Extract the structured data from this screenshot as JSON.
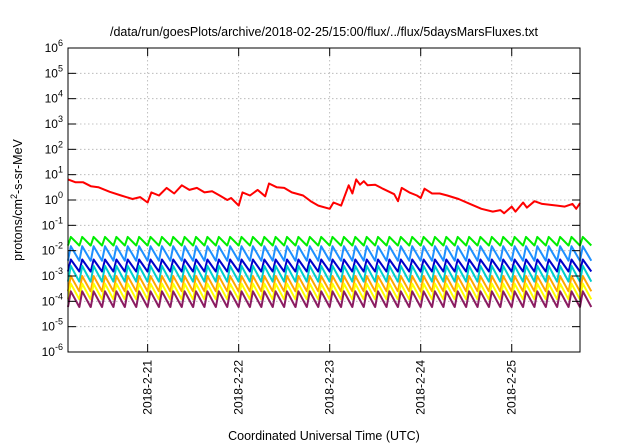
{
  "chart_data": {
    "type": "line",
    "title": "/data/run/goesPlots/archive/2018-02-25/15:00/flux/../flux/5daysMarsFluxes.txt",
    "xlabel": "Coordinated Universal Time (UTC)",
    "ylabel": "protons/cm²-s-sr-MeV",
    "y_scale": "log",
    "ylim": [
      1e-06,
      1000000.0
    ],
    "xlim": [
      "2018-02-20T03:00",
      "2018-02-25T18:00"
    ],
    "grid": true,
    "x_tick_labels": [
      "2018-2-21",
      "2018-2-22",
      "2018-2-23",
      "2018-2-24",
      "2018-2-25"
    ],
    "x_ticks": [
      "2018-02-21T00:00",
      "2018-02-22T00:00",
      "2018-02-23T00:00",
      "2018-02-24T00:00",
      "2018-02-25T00:00"
    ],
    "y_ticks": [
      1e-06,
      1e-05,
      0.0001,
      0.001,
      0.01,
      0.1,
      1.0,
      10.0,
      100.0,
      1000.0,
      10000.0,
      100000.0,
      1000000.0
    ],
    "y_tick_labels": [
      {
        "base": "10",
        "exp": "-6"
      },
      {
        "base": "10",
        "exp": "-5"
      },
      {
        "base": "10",
        "exp": "-4"
      },
      {
        "base": "10",
        "exp": "-3"
      },
      {
        "base": "10",
        "exp": "-2"
      },
      {
        "base": "10",
        "exp": "-1"
      },
      {
        "base": "10",
        "exp": "0"
      },
      {
        "base": "10",
        "exp": "1"
      },
      {
        "base": "10",
        "exp": "2"
      },
      {
        "base": "10",
        "exp": "3"
      },
      {
        "base": "10",
        "exp": "4"
      },
      {
        "base": "10",
        "exp": "5"
      },
      {
        "base": "10",
        "exp": "6"
      }
    ],
    "series": [
      {
        "color": "#ff0000",
        "points": [
          [
            "2018-02-20T03:00",
            6.5
          ],
          [
            "2018-02-20T05:00",
            5.0
          ],
          [
            "2018-02-20T07:00",
            5.0
          ],
          [
            "2018-02-20T09:00",
            3.5
          ],
          [
            "2018-02-20T11:00",
            3.2
          ],
          [
            "2018-02-20T14:00",
            2.1
          ],
          [
            "2018-02-20T17:00",
            1.5
          ],
          [
            "2018-02-20T20:00",
            1.1
          ],
          [
            "2018-02-20T22:00",
            1.3
          ],
          [
            "2018-02-21T00:00",
            0.8
          ],
          [
            "2018-02-21T01:00",
            2.0
          ],
          [
            "2018-02-21T03:00",
            1.5
          ],
          [
            "2018-02-21T05:00",
            3.0
          ],
          [
            "2018-02-21T07:00",
            1.8
          ],
          [
            "2018-02-21T09:00",
            3.8
          ],
          [
            "2018-02-21T11:00",
            2.5
          ],
          [
            "2018-02-21T13:00",
            3.0
          ],
          [
            "2018-02-21T15:00",
            2.0
          ],
          [
            "2018-02-21T17:00",
            2.2
          ],
          [
            "2018-02-21T19:00",
            1.5
          ],
          [
            "2018-02-21T21:00",
            1.0
          ],
          [
            "2018-02-21T22:00",
            1.2
          ],
          [
            "2018-02-22T00:00",
            0.6
          ],
          [
            "2018-02-22T01:00",
            2.0
          ],
          [
            "2018-02-22T03:00",
            1.5
          ],
          [
            "2018-02-22T05:00",
            2.5
          ],
          [
            "2018-02-22T07:00",
            1.4
          ],
          [
            "2018-02-22T08:00",
            4.5
          ],
          [
            "2018-02-22T10:00",
            3.2
          ],
          [
            "2018-02-22T12:00",
            3.0
          ],
          [
            "2018-02-22T14:00",
            2.0
          ],
          [
            "2018-02-22T17:00",
            1.5
          ],
          [
            "2018-02-22T19:00",
            0.9
          ],
          [
            "2018-02-22T21:00",
            0.6
          ],
          [
            "2018-02-23T00:00",
            0.45
          ],
          [
            "2018-02-23T01:00",
            0.8
          ],
          [
            "2018-02-23T03:00",
            0.6
          ],
          [
            "2018-02-23T05:00",
            3.8
          ],
          [
            "2018-02-23T06:00",
            1.8
          ],
          [
            "2018-02-23T07:00",
            6.5
          ],
          [
            "2018-02-23T08:00",
            4.0
          ],
          [
            "2018-02-23T09:00",
            5.5
          ],
          [
            "2018-02-23T10:00",
            3.8
          ],
          [
            "2018-02-23T12:00",
            4.0
          ],
          [
            "2018-02-23T14:00",
            2.8
          ],
          [
            "2018-02-23T17:00",
            1.7
          ],
          [
            "2018-02-23T18:00",
            0.9
          ],
          [
            "2018-02-23T19:00",
            3.0
          ],
          [
            "2018-02-23T21:00",
            2.0
          ],
          [
            "2018-02-23T23:00",
            1.5
          ],
          [
            "2018-02-24T00:00",
            1.2
          ],
          [
            "2018-02-24T01:00",
            2.8
          ],
          [
            "2018-02-24T03:00",
            1.8
          ],
          [
            "2018-02-24T05:00",
            1.8
          ],
          [
            "2018-02-24T07:00",
            1.5
          ],
          [
            "2018-02-24T10:00",
            1.1
          ],
          [
            "2018-02-24T13:00",
            0.7
          ],
          [
            "2018-02-24T16:00",
            0.45
          ],
          [
            "2018-02-24T19:00",
            0.35
          ],
          [
            "2018-02-24T21:00",
            0.4
          ],
          [
            "2018-02-24T22:00",
            0.3
          ],
          [
            "2018-02-25T00:00",
            0.55
          ],
          [
            "2018-02-25T01:00",
            0.35
          ],
          [
            "2018-02-25T03:00",
            0.8
          ],
          [
            "2018-02-25T04:00",
            0.5
          ],
          [
            "2018-02-25T06:00",
            0.9
          ],
          [
            "2018-02-25T08:00",
            0.7
          ],
          [
            "2018-02-25T10:00",
            0.65
          ],
          [
            "2018-02-25T12:00",
            0.6
          ],
          [
            "2018-02-25T14:00",
            0.55
          ],
          [
            "2018-02-25T16:00",
            0.7
          ],
          [
            "2018-02-25T17:00",
            0.45
          ],
          [
            "2018-02-25T18:00",
            0.75
          ]
        ]
      },
      {
        "color": "#00ee00",
        "pattern": {
          "low": 0.016,
          "high": 0.035
        }
      },
      {
        "color": "#1e90ff",
        "pattern": {
          "low": 0.004,
          "high": 0.015
        }
      },
      {
        "color": "#0000cc",
        "pattern": {
          "low": 0.0015,
          "high": 0.0045
        }
      },
      {
        "color": "#00cdcd",
        "pattern": {
          "low": 0.0006,
          "high": 0.0025
        }
      },
      {
        "color": "#ffa500",
        "pattern": {
          "low": 0.00025,
          "high": 0.001
        }
      },
      {
        "color": "#ffff00",
        "pattern": {
          "low": 0.00012,
          "high": 0.0005
        }
      },
      {
        "color": "#8b1c62",
        "pattern": {
          "low": 6e-05,
          "high": 0.00025
        }
      }
    ],
    "sawtooth_period_hours": 3
  }
}
